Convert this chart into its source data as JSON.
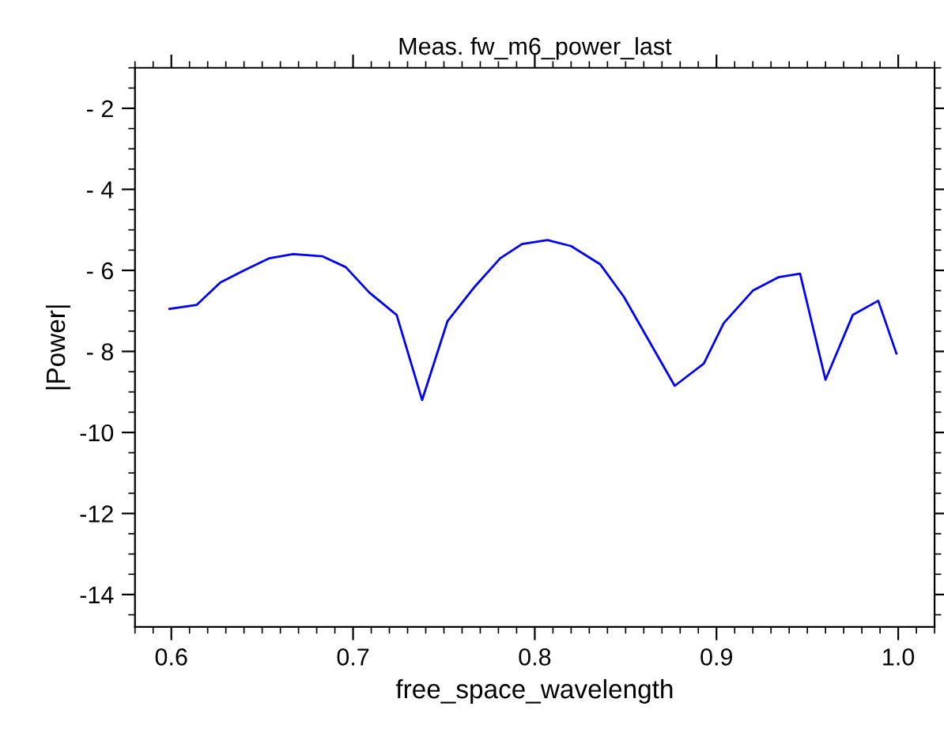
{
  "chart_data": {
    "type": "line",
    "title": "Meas. fw_m6_power_last",
    "xlabel": "free_space_wavelength",
    "ylabel": "|Power|",
    "xlim": [
      0.58,
      1.02
    ],
    "xticks": [
      0.6,
      0.7,
      0.8,
      0.9,
      {
        "value": 1.0,
        "label": "1.0"
      }
    ],
    "ylim": [
      -14.8,
      -1
    ],
    "yticks": [
      {
        "value": -2,
        "label": "- 2"
      },
      {
        "value": -4,
        "label": "- 4"
      },
      {
        "value": -6,
        "label": "- 6"
      },
      {
        "value": -8,
        "label": "- 8"
      },
      {
        "value": -10,
        "label": "-10"
      },
      {
        "value": -12,
        "label": "-12"
      },
      {
        "value": -14,
        "label": "-14"
      }
    ],
    "grid": false,
    "marker": "none",
    "line_style": "solid",
    "series": [
      {
        "color": "#0000ff",
        "x": [
          0.599,
          0.614,
          0.627,
          0.64,
          0.654,
          0.667,
          0.683,
          0.696,
          0.709,
          0.724,
          0.738,
          0.752,
          0.767,
          0.781,
          0.793,
          0.807,
          0.82,
          0.836,
          0.849,
          0.877,
          0.893,
          0.904,
          0.92,
          0.934,
          0.946,
          0.96,
          0.975,
          0.989,
          0.999
        ],
        "values": [
          -6.95,
          -6.85,
          -6.3,
          -6.0,
          -5.7,
          -5.6,
          -5.65,
          -5.92,
          -6.55,
          -7.1,
          -9.2,
          -7.25,
          -6.4,
          -5.7,
          -5.35,
          -5.25,
          -5.4,
          -5.85,
          -6.65,
          -8.85,
          -8.3,
          -7.3,
          -6.5,
          -6.17,
          -6.08,
          -8.7,
          -7.1,
          -6.75,
          -8.05
        ]
      }
    ]
  }
}
